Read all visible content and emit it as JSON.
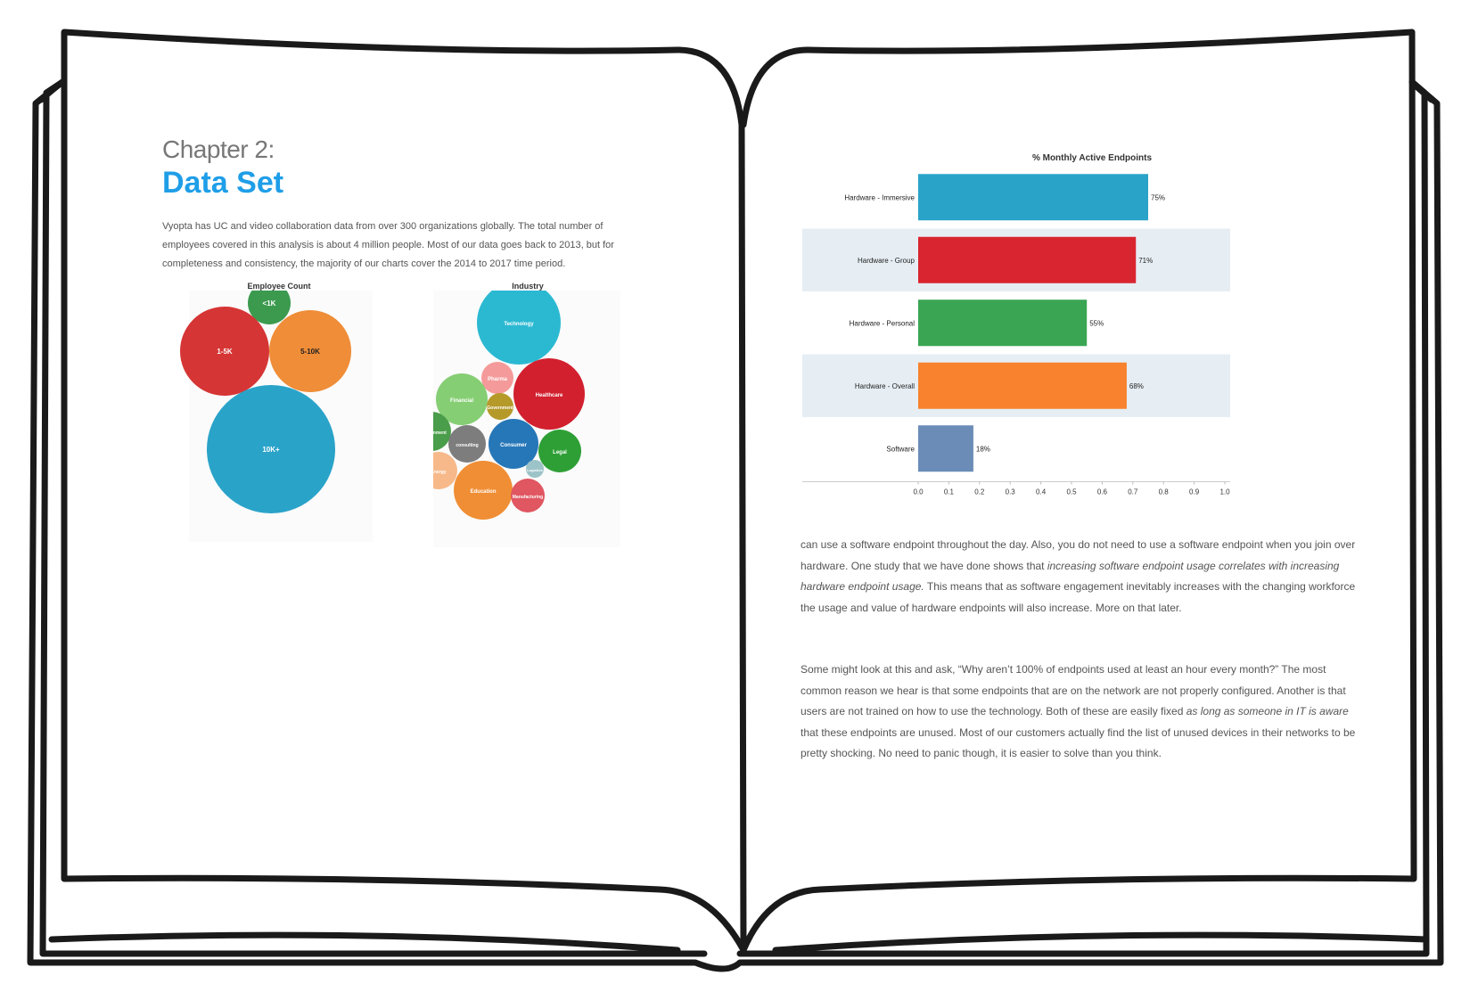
{
  "left_page": {
    "chapter_label": "Chapter 2:",
    "chapter_title": "Data Set",
    "intro_text": "Vyopta has UC and video collaboration data from over 300 organizations globally. The total number of employees covered in this analysis is about 4 million people. Most of our data goes back to 2013, but for completeness and consistency, the majority of our charts cover the 2014 to 2017 time period.",
    "employee_chart": {
      "title": "Employee Count",
      "bubbles": [
        {
          "label": "<1K",
          "color": "#3b9a4e"
        },
        {
          "label": "1-5K",
          "color": "#d63535"
        },
        {
          "label": "5-10K",
          "color": "#ef8d38"
        },
        {
          "label": "10K+",
          "color": "#2aa3c9"
        }
      ]
    },
    "industry_chart": {
      "title": "Industry",
      "bubbles": [
        {
          "label": "Technology",
          "color": "#2bb9d2"
        },
        {
          "label": "Pharma",
          "color": "#f59a9a"
        },
        {
          "label": "Healthcare",
          "color": "#d2202e"
        },
        {
          "label": "Financial",
          "color": "#86ce74"
        },
        {
          "label": "Government",
          "color": "#b59a2a"
        },
        {
          "label": "Entertainment",
          "color": "#4a9d4a"
        },
        {
          "label": "consulting",
          "color": "#7d7d7d"
        },
        {
          "label": "Consumer",
          "color": "#2677b8"
        },
        {
          "label": "Legal",
          "color": "#2e9f35"
        },
        {
          "label": "Logistics",
          "color": "#9cc3c8"
        },
        {
          "label": "Energy",
          "color": "#f7b98a"
        },
        {
          "label": "Education",
          "color": "#f08e35"
        },
        {
          "label": "Manufacturing",
          "color": "#e05661"
        }
      ]
    }
  },
  "chart_data": {
    "type": "bar",
    "orientation": "horizontal",
    "title": "% Monthly Active Endpoints",
    "categories": [
      "Hardware - Immersive",
      "Hardware - Group",
      "Hardware - Personal",
      "Hardware - Overall",
      "Software"
    ],
    "values": [
      0.75,
      0.71,
      0.55,
      0.68,
      0.18
    ],
    "data_labels": [
      "75%",
      "71%",
      "55%",
      "68%",
      "18%"
    ],
    "colors": [
      "#2aa3c9",
      "#d9252f",
      "#3aa653",
      "#f8822d",
      "#6a8cb7"
    ],
    "xlim": [
      0,
      1.0
    ],
    "xticks": [
      "0.0",
      "0.1",
      "0.2",
      "0.3",
      "0.4",
      "0.5",
      "0.6",
      "0.7",
      "0.8",
      "0.9",
      "1.0"
    ],
    "band_color": "#e6eef4",
    "xlabel": "",
    "ylabel": ""
  },
  "right_page": {
    "para1_a": "can use a software endpoint throughout the day.  Also, you do not need to use a software endpoint when you join over hardware. One study that we have done shows that ",
    "para1_em": "increasing software endpoint usage correlates with increasing hardware endpoint usage.",
    "para1_b": "  This means that as software engagement inevitably increases with the changing workforce the usage and value of hardware endpoints will also increase. More on that later.",
    "para2_a": "Some might look at this and ask, “Why aren’t 100% of endpoints used at least an hour every month?” The most common reason we hear is that some endpoints that are on the network are not properly configured.  Another is that users are not trained on how to use the technology. Both of these are easily fixed ",
    "para2_em": "as long as someone in IT is aware",
    "para2_b": " that these endpoints are unused.  Most of our customers actually find the list of unused devices in their networks to be pretty shocking. No need to panic though, it is easier to solve than you think."
  }
}
